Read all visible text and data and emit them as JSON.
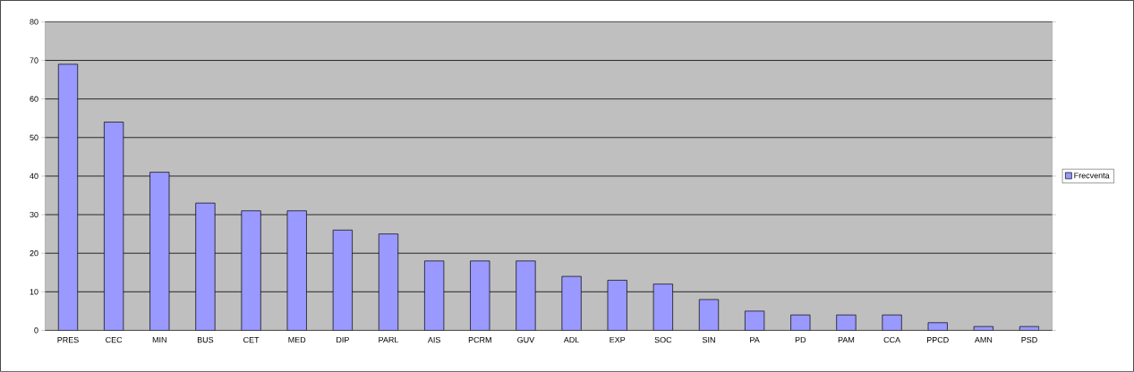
{
  "chart_data": {
    "type": "bar",
    "categories": [
      "PRES",
      "CEC",
      "MIN",
      "BUS",
      "CET",
      "MED",
      "DIP",
      "PARL",
      "AIS",
      "PCRM",
      "GUV",
      "ADL",
      "EXP",
      "SOC",
      "SIN",
      "PA",
      "PD",
      "PAM",
      "CCA",
      "PPCD",
      "AMN",
      "PSD"
    ],
    "series": [
      {
        "name": "Frecventa",
        "color": "#9999ff",
        "values": [
          69,
          54,
          41,
          33,
          31,
          31,
          26,
          25,
          18,
          18,
          18,
          14,
          13,
          12,
          8,
          5,
          4,
          4,
          4,
          2,
          1,
          1
        ]
      }
    ],
    "ylim": [
      0,
      80
    ],
    "yticks": [
      0,
      10,
      20,
      30,
      40,
      50,
      60,
      70,
      80
    ],
    "grid": "y",
    "legend": "right"
  }
}
